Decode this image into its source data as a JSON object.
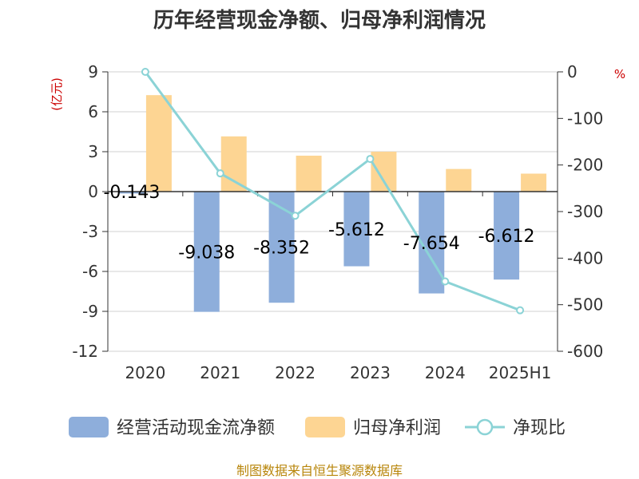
{
  "chart_data": {
    "type": "bar",
    "title": "历年经营现金净额、归母净利润情况",
    "left_unit": "(亿元)",
    "right_unit": "%",
    "categories": [
      "2020",
      "2021",
      "2022",
      "2023",
      "2024",
      "2025H1"
    ],
    "series": [
      {
        "name": "经营活动现金流净额",
        "type": "bar",
        "axis": "left",
        "color": "#8eaedb",
        "values": [
          -0.143,
          -9.038,
          -8.352,
          -5.612,
          -7.654,
          -6.612
        ],
        "labels": [
          "-0.143",
          "-9.038",
          "-8.352",
          "-5.612",
          "-7.654",
          "-6.612"
        ]
      },
      {
        "name": "归母净利润",
        "type": "bar",
        "axis": "left",
        "color": "#fdd593",
        "values": [
          7.25,
          4.15,
          2.7,
          3.0,
          1.7,
          1.35
        ]
      },
      {
        "name": "净现比",
        "type": "line",
        "axis": "right",
        "color": "#8bd3d6",
        "values": [
          0,
          -218,
          -309,
          -187,
          -450,
          -512
        ]
      }
    ],
    "left_axis": {
      "min": -12,
      "max": 9,
      "ticks": [
        "9",
        "6",
        "3",
        "0",
        "-3",
        "-6",
        "-9",
        "-12"
      ]
    },
    "right_axis": {
      "min": -600,
      "max": 0,
      "ticks": [
        "0",
        "-100",
        "-200",
        "-300",
        "-400",
        "-500",
        "-600"
      ]
    },
    "grid": true,
    "legend_position": "bottom"
  },
  "source_text": "制图数据来自恒生聚源数据库"
}
